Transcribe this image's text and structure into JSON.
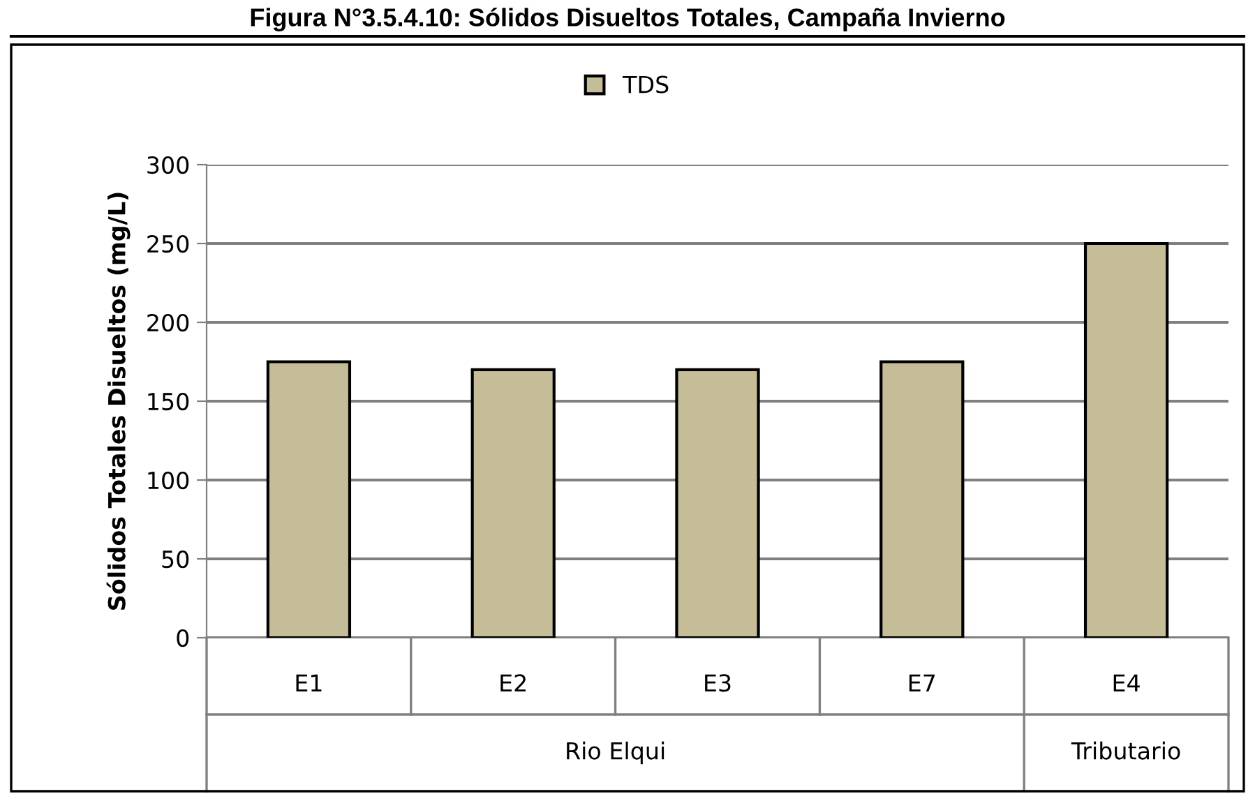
{
  "chart_data": {
    "type": "bar",
    "title": "Figura N°3.5.4.10: Sólidos Disueltos Totales, Campaña Invierno",
    "ylabel": "Sólidos Totales Disueltos (mg/L)",
    "categories": [
      "E1",
      "E2",
      "E3",
      "E7",
      "E4"
    ],
    "series": [
      {
        "name": "TDS",
        "color": "#c4bd97",
        "values": [
          175,
          170,
          170,
          175,
          250
        ]
      }
    ],
    "ylim": [
      0,
      300
    ],
    "yticks": [
      0,
      50,
      100,
      150,
      200,
      250,
      300
    ],
    "grid": "y",
    "legend": "top",
    "annotations": [
      "Rio Elqui",
      "Tributario"
    ]
  }
}
